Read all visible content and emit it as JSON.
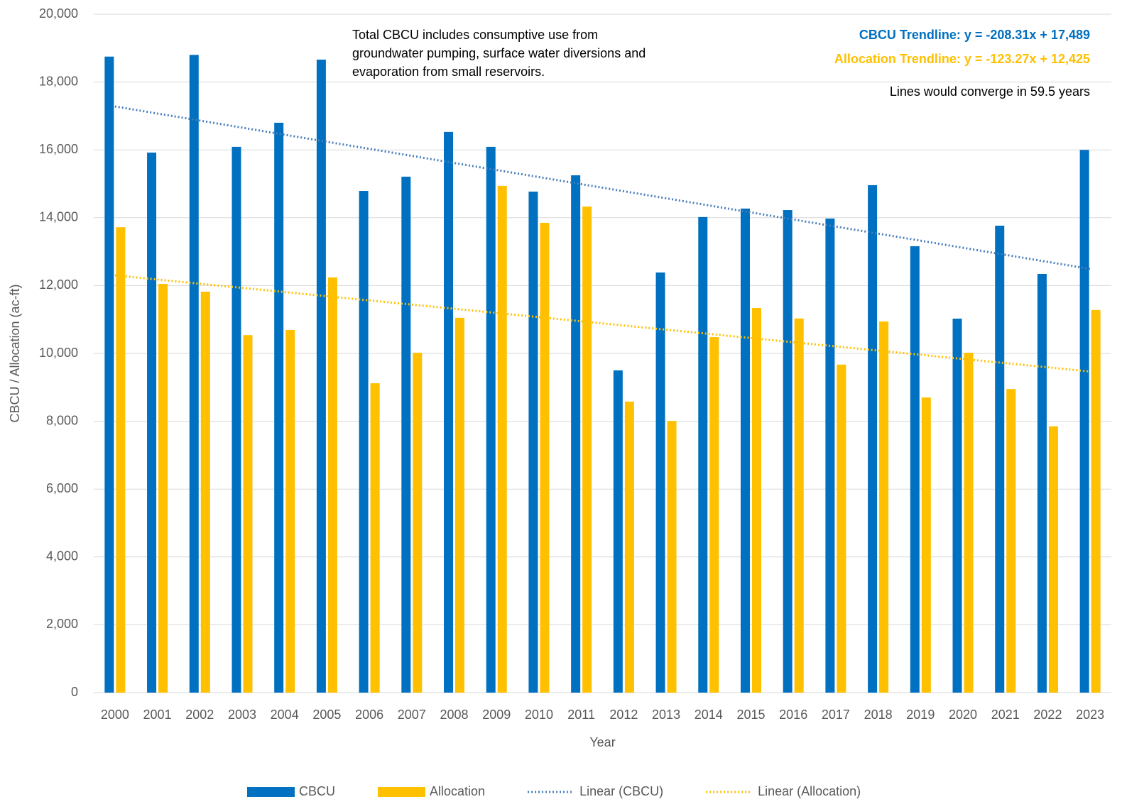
{
  "chart_data": {
    "type": "bar",
    "x_label": "Year",
    "y_label": "CBCU / Allocation (ac-ft)",
    "categories": [
      "2000",
      "2001",
      "2002",
      "2003",
      "2004",
      "2005",
      "2006",
      "2007",
      "2008",
      "2009",
      "2010",
      "2011",
      "2012",
      "2013",
      "2014",
      "2015",
      "2016",
      "2017",
      "2018",
      "2019",
      "2020",
      "2021",
      "2022",
      "2023"
    ],
    "series": [
      {
        "name": "CBCU",
        "type": "bar",
        "color": "#0070C0",
        "values": [
          18750,
          15920,
          18800,
          16090,
          16800,
          18660,
          14790,
          15210,
          16530,
          16090,
          14770,
          15250,
          9500,
          12385,
          14020,
          14270,
          14225,
          13975,
          14960,
          13160,
          11025,
          13765,
          12343,
          16000
        ]
      },
      {
        "name": "Allocation",
        "type": "bar",
        "color": "#FFC000",
        "values": [
          13720,
          12050,
          11820,
          10540,
          10690,
          12240,
          9120,
          10020,
          11050,
          14940,
          13850,
          14330,
          8580,
          8010,
          10480,
          11340,
          11030,
          9670,
          10940,
          8700,
          10020,
          8950,
          7850,
          11280
        ]
      },
      {
        "name": "Linear (CBCU)",
        "type": "line",
        "linestyle": "dotted",
        "color": "#4A7EBB",
        "values": [
          17281,
          17072,
          16864,
          16656,
          16447,
          16239,
          16031,
          15824,
          15614,
          15406,
          15198,
          14989,
          14781,
          14573,
          14364,
          14156,
          13948,
          13739,
          13531,
          13323,
          13114,
          12906,
          12698,
          12490
        ]
      },
      {
        "name": "Linear (Allocation)",
        "type": "line",
        "linestyle": "dotted",
        "color": "#FFC000",
        "values": [
          12302,
          12178,
          12055,
          11932,
          11809,
          11685,
          11562,
          11439,
          11316,
          11192,
          11069,
          10946,
          10823,
          10699,
          10576,
          10453,
          10330,
          10206,
          10083,
          9960,
          9836,
          9713,
          9590,
          9467
        ]
      }
    ],
    "ylim": [
      0,
      20000
    ],
    "yticks": [
      0,
      {
        "value": 2000,
        "label": "2,000"
      },
      {
        "value": 4000,
        "label": "4,000"
      },
      {
        "value": 6000,
        "label": "6,000"
      },
      {
        "value": 8000,
        "label": "8,000"
      },
      {
        "value": 10000,
        "label": "10,000"
      },
      {
        "value": 12000,
        "label": "12,000"
      },
      {
        "value": 14000,
        "label": "14,000"
      },
      {
        "value": 16000,
        "label": "16,000"
      },
      {
        "value": 18000,
        "label": "18,000"
      },
      {
        "value": 20000,
        "label": "20,000"
      }
    ],
    "grid": true,
    "legend": "bottom",
    "note": "Total CBCU includes consumptive use from groundwater pumping, surface water diversions and evaporation from small reservoirs.",
    "trend_labels": [
      {
        "text": "CBCU Trendline: y = -208.31x + 17,489",
        "color": "#0070C0"
      },
      {
        "text": "Allocation Trendline: y = -123.27x + 12,425",
        "color": "#FFC000"
      }
    ],
    "converge_note": "Lines would converge in 59.5 years"
  }
}
